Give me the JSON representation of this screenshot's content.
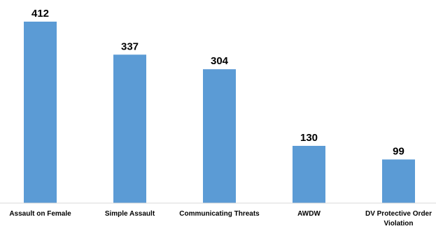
{
  "chart_data": {
    "type": "bar",
    "categories": [
      [
        "Assault on Female"
      ],
      [
        "Simple Assault"
      ],
      [
        "Communicating Threats"
      ],
      [
        "AWDW"
      ],
      [
        "DV Protective Order",
        "Violation"
      ]
    ],
    "values": [
      412,
      337,
      304,
      130,
      99
    ],
    "ylim": [
      0,
      412
    ],
    "grid": false,
    "legend": "none",
    "colors": {
      "bar": "#5b9bd5",
      "axis": "#d9d9d9",
      "text": "#000000"
    }
  }
}
